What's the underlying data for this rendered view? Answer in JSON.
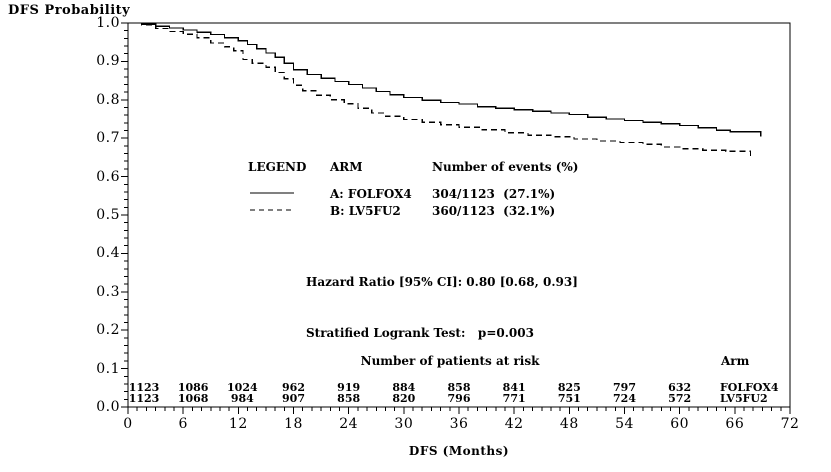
{
  "chart_data": {
    "type": "line",
    "subtype": "kaplan-meier-step",
    "title": "",
    "xlabel": "DFS (Months)",
    "ylabel": "DFS Probability",
    "xlim": [
      0,
      72
    ],
    "ylim": [
      0.0,
      1.0
    ],
    "x_ticks": [
      0,
      6,
      12,
      18,
      24,
      30,
      36,
      42,
      48,
      54,
      60,
      66,
      72
    ],
    "y_ticks": [
      1.0,
      0.9,
      0.8,
      0.7,
      0.6,
      0.5,
      0.4,
      0.3,
      0.2,
      0.1,
      0.0
    ],
    "x_minor_step": 1,
    "y_minor_step": 0.02,
    "grid": false,
    "frame": true,
    "line_color": "#000000",
    "series": [
      {
        "name": "A: FOLFOX4",
        "line": "solid",
        "color": "#000000",
        "points": [
          [
            0,
            1.0
          ],
          [
            1.5,
            0.997
          ],
          [
            3,
            0.992
          ],
          [
            4.5,
            0.987
          ],
          [
            6,
            0.982
          ],
          [
            7.5,
            0.976
          ],
          [
            9,
            0.97
          ],
          [
            10.5,
            0.962
          ],
          [
            12,
            0.954
          ],
          [
            13,
            0.944
          ],
          [
            14,
            0.933
          ],
          [
            15,
            0.922
          ],
          [
            16,
            0.911
          ],
          [
            17,
            0.895
          ],
          [
            18,
            0.878
          ],
          [
            19.5,
            0.866
          ],
          [
            21,
            0.856
          ],
          [
            22.5,
            0.848
          ],
          [
            24,
            0.84
          ],
          [
            25.5,
            0.831
          ],
          [
            27,
            0.822
          ],
          [
            28.5,
            0.813
          ],
          [
            30,
            0.806
          ],
          [
            32,
            0.799
          ],
          [
            34,
            0.793
          ],
          [
            36,
            0.789
          ],
          [
            38,
            0.782
          ],
          [
            40,
            0.778
          ],
          [
            42,
            0.774
          ],
          [
            44,
            0.77
          ],
          [
            46,
            0.766
          ],
          [
            48,
            0.762
          ],
          [
            50,
            0.755
          ],
          [
            52,
            0.75
          ],
          [
            54,
            0.746
          ],
          [
            56,
            0.742
          ],
          [
            58,
            0.738
          ],
          [
            60,
            0.733
          ],
          [
            62,
            0.727
          ],
          [
            64,
            0.721
          ],
          [
            65.5,
            0.717
          ],
          [
            68.8,
            0.705
          ]
        ]
      },
      {
        "name": "B: LV5FU2",
        "line": "dashed",
        "color": "#000000",
        "points": [
          [
            0,
            1.0
          ],
          [
            1.5,
            0.995
          ],
          [
            3,
            0.986
          ],
          [
            4.5,
            0.978
          ],
          [
            6,
            0.971
          ],
          [
            7.5,
            0.962
          ],
          [
            9,
            0.948
          ],
          [
            10.5,
            0.938
          ],
          [
            11.5,
            0.928
          ],
          [
            12.5,
            0.905
          ],
          [
            13.5,
            0.895
          ],
          [
            15,
            0.885
          ],
          [
            16,
            0.871
          ],
          [
            17,
            0.855
          ],
          [
            18,
            0.838
          ],
          [
            19,
            0.824
          ],
          [
            20.5,
            0.812
          ],
          [
            22,
            0.8
          ],
          [
            23.5,
            0.79
          ],
          [
            25,
            0.778
          ],
          [
            26.5,
            0.766
          ],
          [
            28,
            0.757
          ],
          [
            30,
            0.749
          ],
          [
            32,
            0.742
          ],
          [
            34,
            0.735
          ],
          [
            36,
            0.729
          ],
          [
            38.5,
            0.722
          ],
          [
            41,
            0.714
          ],
          [
            43.5,
            0.708
          ],
          [
            46,
            0.704
          ],
          [
            48.5,
            0.698
          ],
          [
            51,
            0.693
          ],
          [
            53.5,
            0.689
          ],
          [
            56,
            0.684
          ],
          [
            58,
            0.677
          ],
          [
            60,
            0.673
          ],
          [
            62.5,
            0.669
          ],
          [
            65,
            0.666
          ],
          [
            67.7,
            0.654
          ]
        ]
      }
    ]
  },
  "legend": {
    "header_legend": "LEGEND",
    "header_arm": "ARM",
    "header_events": "Number of events (%)",
    "rows": [
      {
        "arm": "A: FOLFOX4",
        "events": "304/1123  (27.1%)",
        "line": "solid"
      },
      {
        "arm": "B: LV5FU2",
        "events": "360/1123  (32.1%)",
        "line": "dashed"
      }
    ]
  },
  "stats": {
    "hazard_ratio": "Hazard Ratio [95% CI]: 0.80 [0.68, 0.93]",
    "logrank": "Stratified Logrank Test:   p=0.003"
  },
  "risk_table": {
    "header": "Number of patients at risk",
    "arm_header": "Arm",
    "times": [
      0,
      6,
      12,
      18,
      24,
      30,
      36,
      42,
      48,
      54,
      60
    ],
    "rows": [
      {
        "arm": "FOLFOX4",
        "counts": [
          1123,
          1086,
          1024,
          962,
          919,
          884,
          858,
          841,
          825,
          797,
          632
        ]
      },
      {
        "arm": "LV5FU2",
        "counts": [
          1123,
          1068,
          984,
          907,
          858,
          820,
          796,
          771,
          751,
          724,
          572
        ]
      }
    ]
  }
}
